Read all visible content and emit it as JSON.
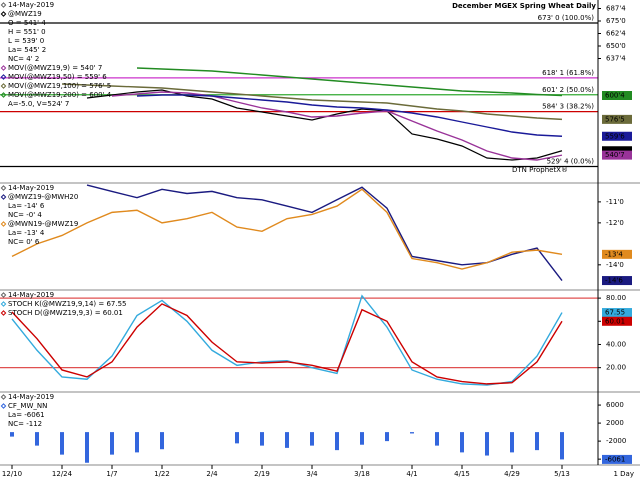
{
  "chart_data": [
    {
      "type": "line",
      "title": "December MGEX Spring Wheat Daily",
      "watermark": "DTN ProphetX®",
      "date": "14-May-2019",
      "info": [
        "O = 541' 4",
        "H = 551' 0",
        "L = 539' 0",
        "La= 545' 2",
        "NC= 4' 2"
      ],
      "notes": [
        "A=-5.0, V=524' 7"
      ],
      "ylim": [
        513,
        696
      ],
      "yticks": [
        {
          "value": 687.5,
          "label": "687'4"
        },
        {
          "value": 675,
          "label": "675'0"
        },
        {
          "value": 662.5,
          "label": "662'4"
        },
        {
          "value": 650,
          "label": "650'0"
        },
        {
          "value": 637.5,
          "label": "637'4"
        }
      ],
      "levels": [
        {
          "value": 673,
          "label": "673' 0 (100.0%)",
          "color": "#000000"
        },
        {
          "value": 618.125,
          "label": "618' 1 (61.8%)",
          "color": "#cc33cc"
        },
        {
          "value": 601.25,
          "label": "601' 2 (50.0%)",
          "color": "#33aa33"
        },
        {
          "value": 584.375,
          "label": "584' 3 (38.2%)",
          "color": "#cc0000"
        },
        {
          "value": 529.5,
          "label": "529' 4 (0.0%)",
          "color": "#000000"
        }
      ],
      "series": [
        {
          "name": "@MWZ19",
          "color": "#000000",
          "value_label": "545'2",
          "values": [
            null,
            null,
            null,
            598,
            601,
            604,
            606,
            600,
            597,
            588,
            584,
            580,
            576,
            582,
            587,
            585,
            562,
            557,
            550,
            538,
            536,
            538,
            545.25
          ]
        },
        {
          "name": "MOV(@MWZ19,9) = 540' 7",
          "color": "#993399",
          "value_label": "540'7",
          "values": [
            null,
            null,
            null,
            null,
            600,
            602,
            604,
            603,
            600,
            594,
            588,
            584,
            579,
            580,
            583,
            585,
            575,
            565,
            556,
            545,
            538,
            536,
            540.875
          ]
        },
        {
          "name": "MOV(@MWZ19,50) = 559' 6",
          "color": "#1a1a99",
          "value_label": "559'6",
          "values": [
            null,
            null,
            null,
            null,
            null,
            600,
            601,
            601,
            600,
            598,
            596,
            594,
            591,
            589,
            588,
            586,
            583,
            579,
            574,
            569,
            564,
            561,
            559.75
          ]
        },
        {
          "name": "MOV(@MWZ19,100) = 576' 5",
          "color": "#6b6b3a",
          "value_label": "576'5",
          "values": [
            null,
            null,
            612,
            611,
            610,
            609,
            608,
            606,
            604,
            602,
            600,
            598,
            596,
            595,
            594,
            593,
            590,
            587,
            585,
            582,
            580,
            578,
            576.625
          ]
        },
        {
          "name": "MOV(@MWZ19,200) = 600' 4",
          "color": "#228b22",
          "value_label": "600'4",
          "values": [
            null,
            null,
            null,
            null,
            null,
            628,
            627,
            626,
            625,
            623,
            621,
            619,
            617,
            615,
            613,
            611,
            609,
            607,
            605,
            604,
            603,
            601.5,
            600.5
          ]
        }
      ]
    },
    {
      "type": "line",
      "date": "14-May-2019",
      "ylim": [
        -15.2,
        -10.1
      ],
      "yticks": [
        {
          "value": -11,
          "label": "-11'0"
        },
        {
          "value": -12,
          "label": "-12'0"
        },
        {
          "value": -14,
          "label": "-14'0"
        }
      ],
      "series": [
        {
          "name": "@MWZ19-@MWH20",
          "color": "#1a1a80",
          "info": [
            "La= -14' 6",
            "NC= -0' 4"
          ],
          "value_label": "-14'6",
          "values": [
            null,
            null,
            null,
            -10.2,
            -10.5,
            -10.8,
            -10.4,
            -10.6,
            -10.5,
            -10.8,
            -10.9,
            -11.2,
            -11.5,
            -10.9,
            -10.3,
            -11.3,
            -13.6,
            -13.8,
            -14.0,
            -13.9,
            -13.5,
            -13.2,
            -14.75
          ]
        },
        {
          "name": "@MWN19-@MWZ19",
          "color": "#e08a1e",
          "info": [
            "La= -13' 4",
            "NC= 0' 6"
          ],
          "value_label": "-13'4",
          "values": [
            -13.6,
            -13.0,
            -12.6,
            -12.0,
            -11.5,
            -11.4,
            -12.0,
            -11.8,
            -11.5,
            -12.2,
            -12.4,
            -11.8,
            -11.6,
            -11.2,
            -10.4,
            -11.5,
            -13.7,
            -13.9,
            -14.2,
            -13.9,
            -13.4,
            -13.3,
            -13.5
          ]
        }
      ]
    },
    {
      "type": "line",
      "date": "14-May-2019",
      "ylim": [
        -1,
        87
      ],
      "yticks": [
        {
          "value": 80,
          "label": "80.00"
        },
        {
          "value": 60,
          "label": "60.00"
        },
        {
          "value": 40,
          "label": "40.00"
        },
        {
          "value": 20,
          "label": "20.00"
        }
      ],
      "levels": [
        {
          "value": 80,
          "color": "#e05050"
        },
        {
          "value": 20,
          "color": "#e05050"
        }
      ],
      "series": [
        {
          "name": "STOCH K(@MWZ19,9,14) = 67.55",
          "color": "#33aadd",
          "value_label": "67.55",
          "values": [
            62,
            35,
            12,
            10,
            30,
            65,
            78,
            60,
            35,
            22,
            25,
            26,
            20,
            15,
            82,
            55,
            18,
            10,
            6,
            5,
            8,
            30,
            67.55
          ]
        },
        {
          "name": "STOCH D(@MWZ19,9,3) = 60.01",
          "color": "#cc0000",
          "value_label": "60.01",
          "values": [
            68,
            45,
            18,
            12,
            25,
            55,
            75,
            65,
            42,
            25,
            24,
            25,
            22,
            17,
            70,
            60,
            25,
            12,
            8,
            6,
            7,
            25,
            60.01
          ]
        }
      ]
    },
    {
      "type": "bar",
      "date": "14-May-2019",
      "categories": [
        "12/10",
        null,
        "12/24",
        null,
        "1/7",
        null,
        "1/22",
        null,
        "2/4",
        null,
        "2/19",
        null,
        "3/4",
        null,
        "3/18",
        null,
        "4/1",
        null,
        "4/15",
        null,
        "4/29",
        null,
        "5/13"
      ],
      "x_unit": "1 Day",
      "ylim": [
        -7300,
        8900
      ],
      "yticks": [
        6000,
        2000,
        -2000,
        -6000
      ],
      "series": [
        {
          "name": "CF_MW_NN",
          "color": "#3366dd",
          "info": [
            "La= -6061",
            "NC= -112"
          ],
          "value_label": "-6061",
          "values": [
            -1000,
            -3000,
            -5000,
            -6800,
            -5000,
            -4500,
            -3800,
            null,
            null,
            -2500,
            -3000,
            -3500,
            -3000,
            -4000,
            -2800,
            -2000,
            -300,
            -3000,
            -4500,
            -5200,
            -4500,
            -4000,
            -6061
          ]
        }
      ]
    }
  ]
}
